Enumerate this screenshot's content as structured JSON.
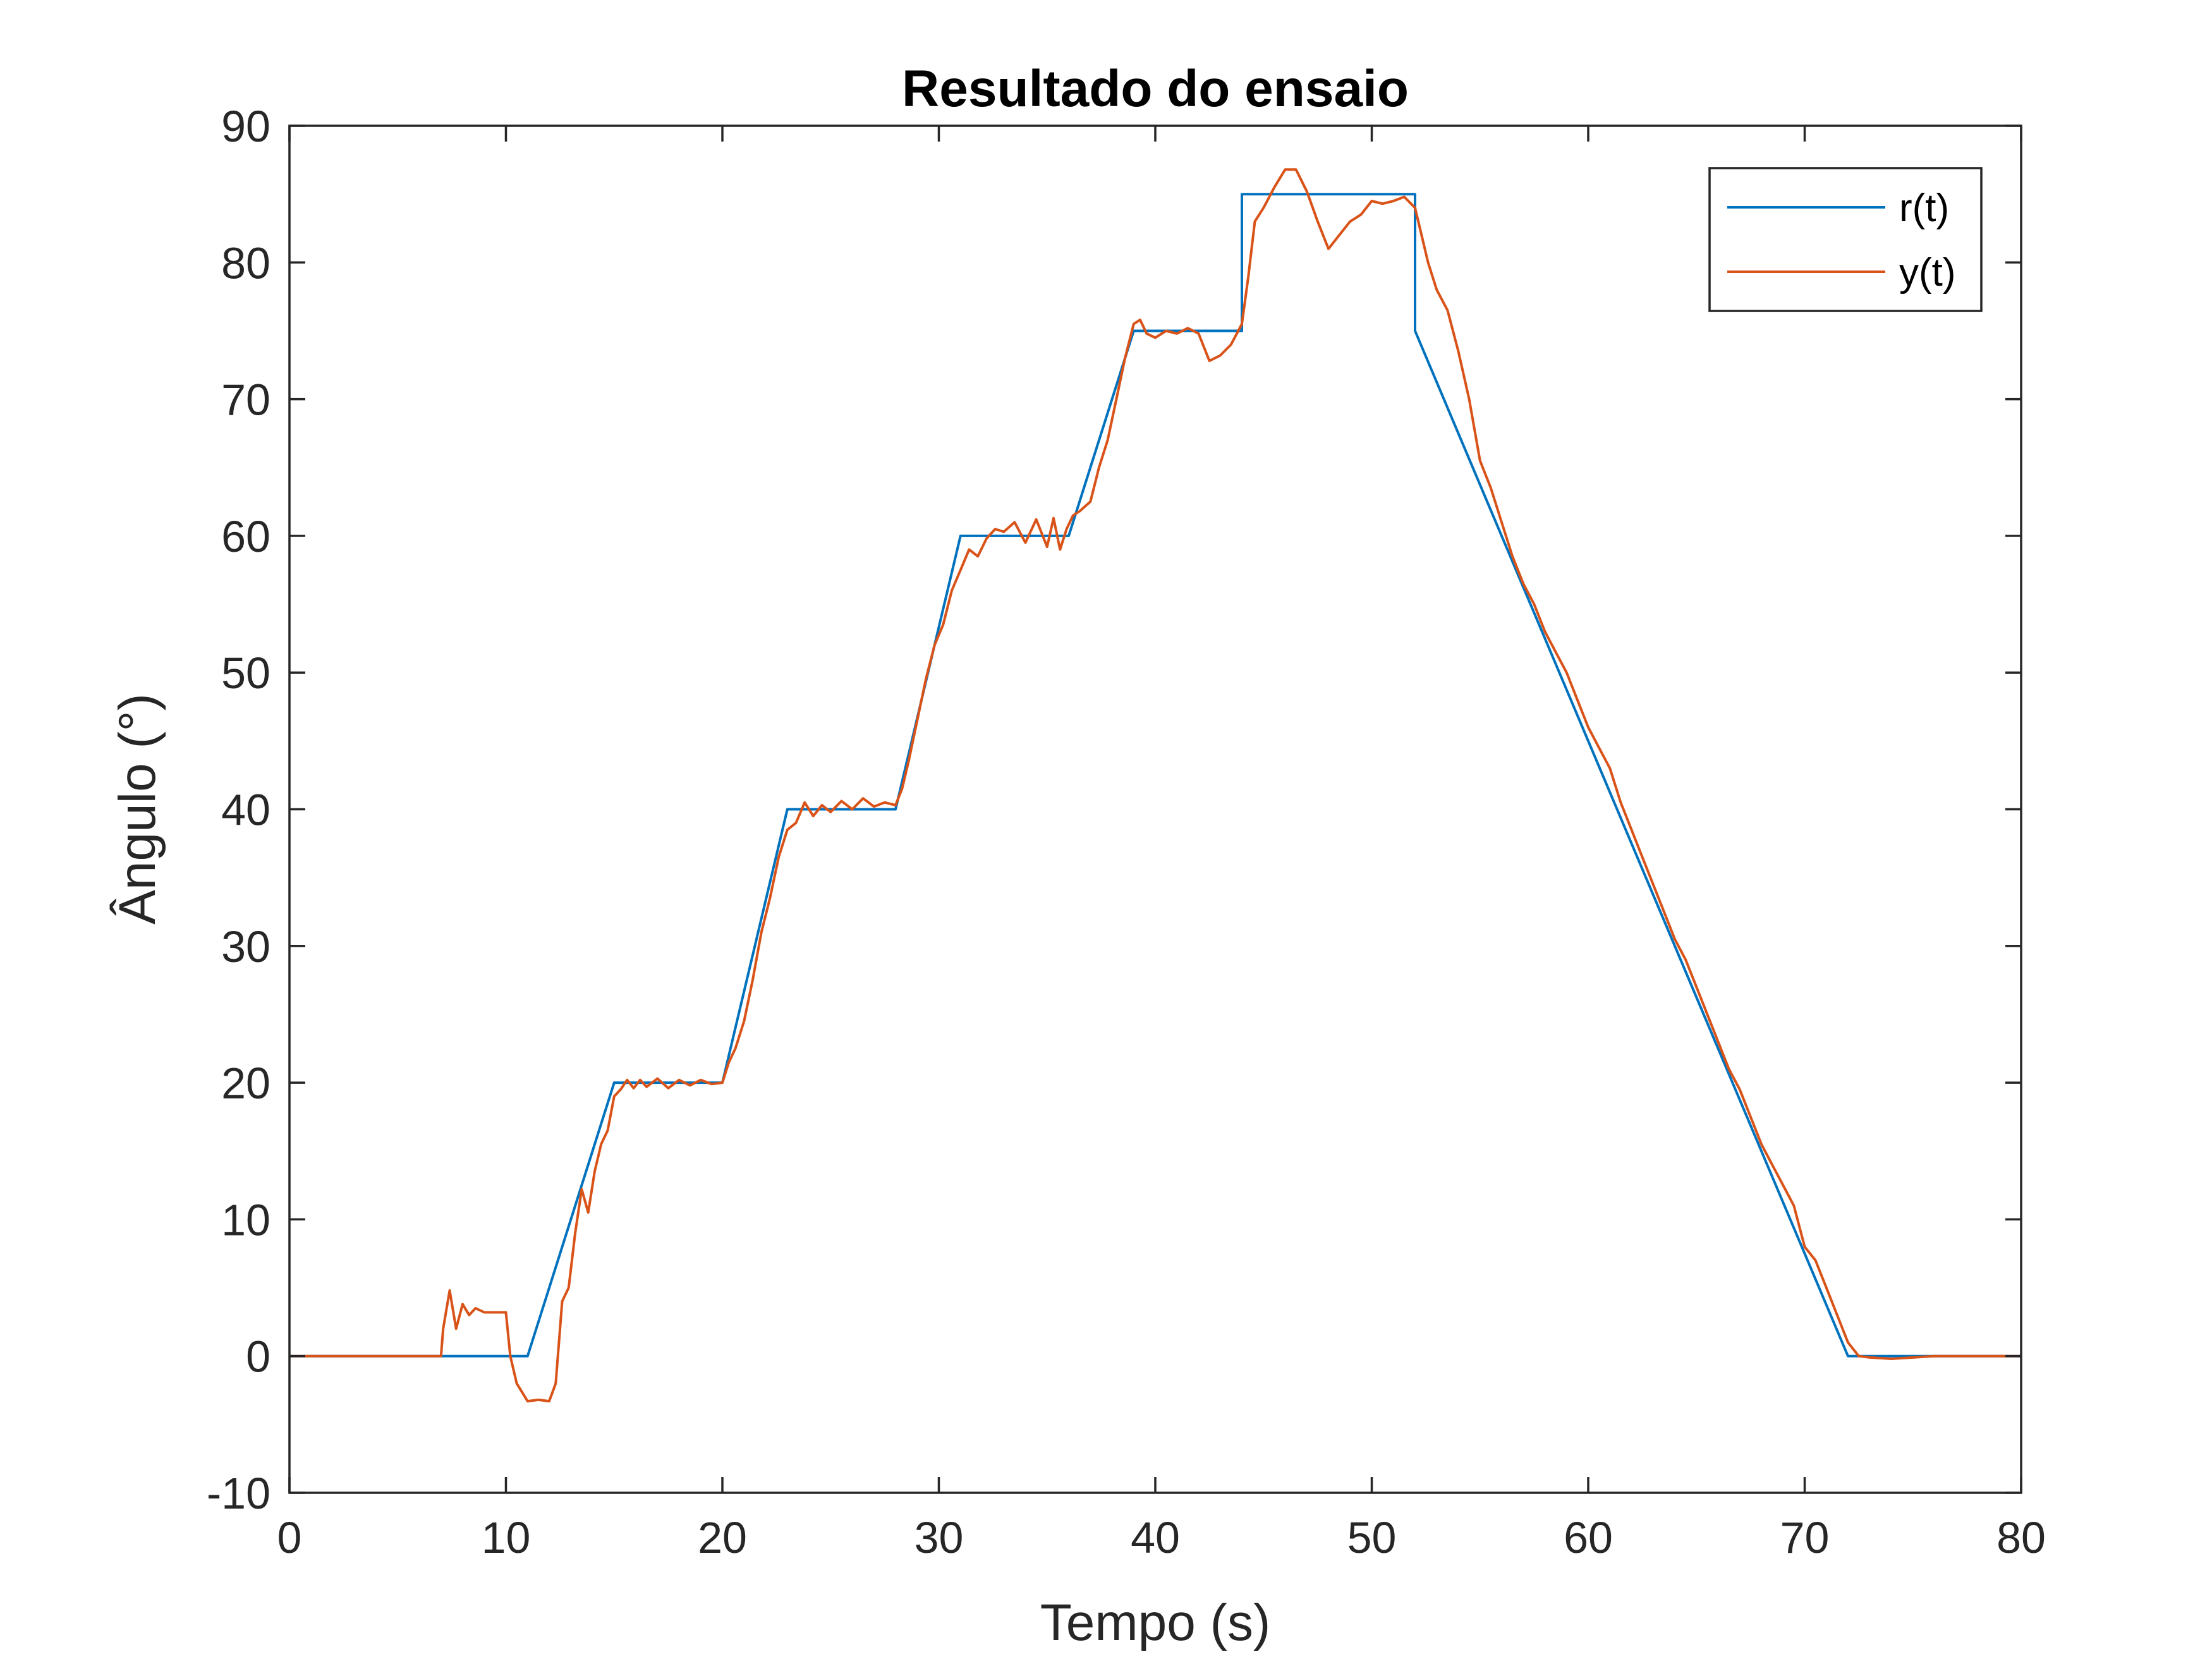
{
  "chart_data": {
    "type": "line",
    "title": "Resultado do ensaio",
    "xlabel": "Tempo (s)",
    "ylabel": "Ângulo (°)",
    "xlim": [
      0,
      80
    ],
    "ylim": [
      -10,
      90
    ],
    "xticks": [
      0,
      10,
      20,
      30,
      40,
      50,
      60,
      70,
      80
    ],
    "yticks": [
      -10,
      0,
      10,
      20,
      30,
      40,
      50,
      60,
      70,
      80,
      90
    ],
    "grid": false,
    "legend_position": "top-right",
    "series": [
      {
        "name": "r(t)",
        "color": "#0072BD",
        "x": [
          0,
          11,
          15,
          20,
          23,
          28,
          31,
          36,
          39,
          44,
          44,
          52,
          52,
          72,
          80
        ],
        "y": [
          0,
          0,
          20,
          20,
          40,
          40,
          60,
          60,
          75,
          75,
          85,
          85,
          75,
          0,
          0
        ]
      },
      {
        "name": "y(t)",
        "color": "#D95319",
        "x": [
          0,
          7,
          7.1,
          7.4,
          7.7,
          8.0,
          8.3,
          8.6,
          9.0,
          9.5,
          10.0,
          10.2,
          10.5,
          11.0,
          11.5,
          12.0,
          12.3,
          12.6,
          12.9,
          13.2,
          13.5,
          13.8,
          14.1,
          14.4,
          14.7,
          15.0,
          15.3,
          15.6,
          15.9,
          16.2,
          16.5,
          17.0,
          17.5,
          18.0,
          18.5,
          19.0,
          19.5,
          20.0,
          20.3,
          20.6,
          21.0,
          21.4,
          21.8,
          22.2,
          22.6,
          23.0,
          23.4,
          23.8,
          24.2,
          24.6,
          25.0,
          25.5,
          26.0,
          26.5,
          27.0,
          27.5,
          28.0,
          28.3,
          28.6,
          29.0,
          29.4,
          29.8,
          30.2,
          30.6,
          31.0,
          31.4,
          31.8,
          32.2,
          32.6,
          33.0,
          33.5,
          34.0,
          34.5,
          35.0,
          35.3,
          35.6,
          35.9,
          36.2,
          36.5,
          37.0,
          37.4,
          37.8,
          38.2,
          38.6,
          39.0,
          39.3,
          39.6,
          40.0,
          40.5,
          41.0,
          41.5,
          42.0,
          42.5,
          43.0,
          43.5,
          44.0,
          44.3,
          44.6,
          45.0,
          45.5,
          46.0,
          46.5,
          47.0,
          47.5,
          48.0,
          48.5,
          49.0,
          49.5,
          50.0,
          50.5,
          51.0,
          51.5,
          52.0,
          52.3,
          52.6,
          53.0,
          53.5,
          54.0,
          54.5,
          55.0,
          55.5,
          56.0,
          56.5,
          57.0,
          57.5,
          58.0,
          58.5,
          59.0,
          59.5,
          60.0,
          60.5,
          61.0,
          61.5,
          62.0,
          62.5,
          63.0,
          63.5,
          64.0,
          64.5,
          65.0,
          65.5,
          66.0,
          66.5,
          67.0,
          67.5,
          68.0,
          68.5,
          69.0,
          69.5,
          70.0,
          70.5,
          71.0,
          71.5,
          72.0,
          72.5,
          73.0,
          74.0,
          75.0,
          76.0,
          78.0,
          80.0
        ],
        "y": [
          0,
          0,
          2.0,
          4.8,
          2.0,
          3.8,
          3.0,
          3.5,
          3.2,
          3.2,
          3.2,
          0.0,
          -2.0,
          -3.3,
          -3.2,
          -3.3,
          -2.0,
          4.0,
          5.0,
          9.0,
          12.2,
          10.5,
          13.5,
          15.5,
          16.5,
          19.0,
          19.5,
          20.2,
          19.6,
          20.2,
          19.7,
          20.3,
          19.6,
          20.2,
          19.8,
          20.2,
          19.9,
          20.0,
          21.5,
          22.5,
          24.5,
          27.5,
          31.0,
          33.5,
          36.5,
          38.5,
          39.0,
          40.5,
          39.5,
          40.3,
          39.8,
          40.6,
          40.0,
          40.8,
          40.2,
          40.5,
          40.3,
          41.5,
          43.5,
          46.5,
          49.5,
          52.0,
          53.5,
          56.0,
          57.5,
          59.0,
          58.5,
          59.8,
          60.5,
          60.3,
          61.0,
          59.5,
          61.2,
          59.2,
          61.3,
          59.0,
          60.5,
          61.5,
          61.8,
          62.5,
          65.0,
          67.0,
          70.0,
          73.0,
          75.5,
          75.8,
          74.8,
          74.5,
          75.0,
          74.8,
          75.2,
          74.8,
          72.8,
          73.2,
          74.0,
          75.5,
          79.0,
          83.0,
          84.0,
          85.5,
          86.8,
          86.8,
          85.2,
          83.0,
          81.0,
          82.0,
          83.0,
          83.5,
          84.5,
          84.3,
          84.5,
          84.8,
          84.0,
          82.0,
          80.0,
          78.0,
          76.5,
          73.5,
          70.0,
          65.5,
          63.5,
          61.0,
          58.5,
          56.5,
          55.0,
          53.0,
          51.5,
          50.0,
          48.0,
          46.0,
          44.5,
          43.0,
          40.5,
          38.5,
          36.5,
          34.5,
          32.5,
          30.5,
          29.0,
          27.0,
          25.0,
          23.0,
          21.0,
          19.5,
          17.5,
          15.5,
          14.0,
          12.5,
          11.0,
          8.0,
          7.0,
          5.0,
          3.0,
          1.0,
          0.0,
          -0.1,
          -0.2,
          -0.1,
          0.0,
          0.0,
          0.0
        ]
      }
    ]
  }
}
